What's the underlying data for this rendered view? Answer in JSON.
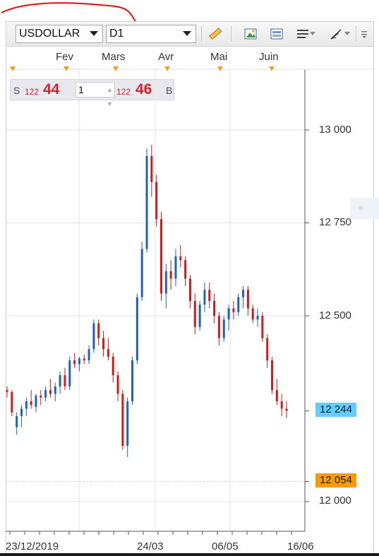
{
  "toolbar": {
    "symbol": "USDOLLAR",
    "timeframe": "D1",
    "tools": [
      "ruler-icon",
      "picture-icon",
      "template-icon",
      "lines-icon",
      "draw-icon",
      "menu-icon"
    ]
  },
  "months": [
    "Fev",
    "Mars",
    "Avr",
    "Mai",
    "Juin"
  ],
  "trade_panel": {
    "sell_letter": "S",
    "sell_prefix": "122",
    "sell_big": "44",
    "lot": "1",
    "buy_prefix": "122",
    "buy_big": "46",
    "buy_letter": "B"
  },
  "price_axis": [
    "13 000",
    "12 750",
    "12 500",
    "12 000"
  ],
  "current_price": "12 244",
  "marker_price": "12 054",
  "dates": [
    "23/12/2019",
    "24/03",
    "06/05",
    "16/06"
  ],
  "colors": {
    "bull": "#1f63b6",
    "bear": "#d11a1a",
    "current_box": "#66ccff",
    "marker_box": "#ff9900",
    "scribble": "#e01010"
  },
  "chart_data": {
    "type": "candlestick",
    "ylim": [
      11960,
      13250
    ],
    "ohlc": [
      [
        12300,
        12310,
        12280,
        12295
      ],
      [
        12295,
        12300,
        12230,
        12240
      ],
      [
        12200,
        12240,
        12180,
        12230
      ],
      [
        12230,
        12260,
        12200,
        12250
      ],
      [
        12250,
        12280,
        12230,
        12270
      ],
      [
        12270,
        12300,
        12250,
        12260
      ],
      [
        12255,
        12290,
        12240,
        12285
      ],
      [
        12285,
        12300,
        12260,
        12280
      ],
      [
        12280,
        12310,
        12270,
        12300
      ],
      [
        12300,
        12330,
        12280,
        12290
      ],
      [
        12290,
        12320,
        12270,
        12310
      ],
      [
        12310,
        12350,
        12290,
        12340
      ],
      [
        12340,
        12360,
        12300,
        12310
      ],
      [
        12310,
        12390,
        12300,
        12380
      ],
      [
        12380,
        12400,
        12360,
        12370
      ],
      [
        12370,
        12390,
        12350,
        12385
      ],
      [
        12385,
        12395,
        12370,
        12380
      ],
      [
        12380,
        12420,
        12370,
        12410
      ],
      [
        12410,
        12490,
        12400,
        12480
      ],
      [
        12480,
        12490,
        12420,
        12440
      ],
      [
        12440,
        12460,
        12390,
        12410
      ],
      [
        12410,
        12440,
        12380,
        12390
      ],
      [
        12390,
        12400,
        12320,
        12340
      ],
      [
        12340,
        12350,
        12270,
        12290
      ],
      [
        12290,
        12300,
        12140,
        12150
      ],
      [
        12150,
        12280,
        12120,
        12270
      ],
      [
        12270,
        12390,
        12260,
        12380
      ],
      [
        12380,
        12560,
        12370,
        12550
      ],
      [
        12550,
        12700,
        12540,
        12680
      ],
      [
        12680,
        12950,
        12670,
        12930
      ],
      [
        12930,
        12960,
        12820,
        12860
      ],
      [
        12860,
        12880,
        12740,
        12760
      ],
      [
        12760,
        12780,
        12540,
        12560
      ],
      [
        12560,
        12640,
        12520,
        12620
      ],
      [
        12620,
        12650,
        12570,
        12600
      ],
      [
        12600,
        12680,
        12580,
        12660
      ],
      [
        12660,
        12690,
        12630,
        12650
      ],
      [
        12650,
        12660,
        12580,
        12600
      ],
      [
        12600,
        12610,
        12520,
        12540
      ],
      [
        12540,
        12560,
        12450,
        12470
      ],
      [
        12470,
        12540,
        12460,
        12530
      ],
      [
        12530,
        12590,
        12510,
        12570
      ],
      [
        12570,
        12590,
        12520,
        12540
      ],
      [
        12540,
        12560,
        12480,
        12500
      ],
      [
        12500,
        12510,
        12420,
        12440
      ],
      [
        12440,
        12500,
        12430,
        12490
      ],
      [
        12490,
        12530,
        12460,
        12520
      ],
      [
        12520,
        12540,
        12490,
        12510
      ],
      [
        12510,
        12560,
        12500,
        12550
      ],
      [
        12550,
        12580,
        12520,
        12570
      ],
      [
        12570,
        12580,
        12500,
        12520
      ],
      [
        12520,
        12530,
        12480,
        12490
      ],
      [
        12490,
        12520,
        12470,
        12500
      ],
      [
        12500,
        12510,
        12430,
        12440
      ],
      [
        12440,
        12450,
        12360,
        12380
      ],
      [
        12380,
        12390,
        12290,
        12300
      ],
      [
        12300,
        12330,
        12260,
        12270
      ],
      [
        12270,
        12290,
        12230,
        12250
      ],
      [
        12250,
        12270,
        12225,
        12244
      ]
    ]
  }
}
